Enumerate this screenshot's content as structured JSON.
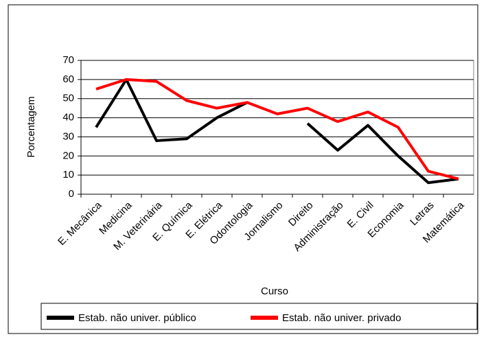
{
  "chart_data": {
    "type": "line",
    "categories": [
      "E. Mecânica",
      "Medicina",
      "M. Veterinária",
      "E. Química",
      "E. Elétrica",
      "Odontologia",
      "Jornalismo",
      "Direito",
      "Administração",
      "E. Civil",
      "Economia",
      "Letras",
      "Matemática"
    ],
    "series": [
      {
        "name": "Estab. não univer. público",
        "color": "#000000",
        "values": [
          35,
          60,
          28,
          29,
          40,
          48,
          null,
          37,
          23,
          36,
          20,
          6,
          8
        ]
      },
      {
        "name": "Estab. não univer.  privado",
        "color": "#ff0000",
        "values": [
          55,
          60,
          59,
          49,
          45,
          48,
          42,
          45,
          38,
          43,
          35,
          12,
          8
        ]
      }
    ],
    "xlabel": "Curso",
    "ylabel": "Porcentagem",
    "ylim": [
      0,
      70
    ],
    "yticks": [
      0,
      10,
      20,
      30,
      40,
      50,
      60,
      70
    ],
    "grid": true,
    "legend": "bottom"
  }
}
